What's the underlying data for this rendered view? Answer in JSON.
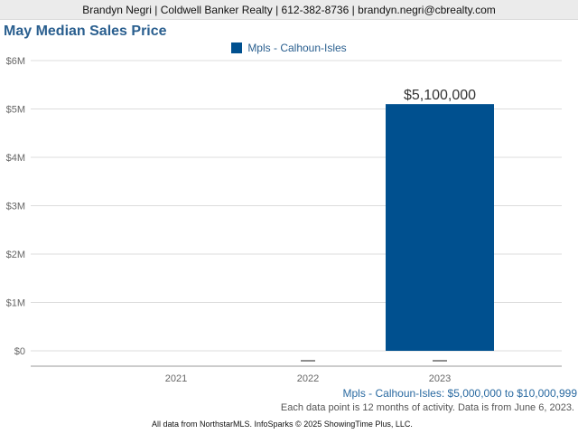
{
  "header": {
    "text": "Brandyn Negri | Coldwell Banker Realty | 612-382-8736 | brandyn.negri@cbrealty.com"
  },
  "notes": {
    "range": "Mpls - Calhoun-Isles: $5,000,000 to $10,000,999",
    "activity": "Each data point is 12 months of activity. Data is from June 6, 2023."
  },
  "footer": {
    "text": "All data from NorthstarMLS. InfoSparks © 2025 ShowingTime Plus, LLC."
  },
  "colors": {
    "bar": "#00508f",
    "title": "#2a5f8f",
    "grid": "#dcdcdc",
    "axis": "#999999"
  },
  "chart_data": {
    "type": "bar",
    "title": "May Median Sales Price",
    "categories": [
      "2021",
      "2022",
      "2023"
    ],
    "series": [
      {
        "name": "Mpls - Calhoun-Isles",
        "values": [
          null,
          null,
          5100000
        ],
        "data_labels": [
          "",
          "",
          "$5,100,000"
        ]
      }
    ],
    "no_data_markers": [
      "",
      "—",
      "—"
    ],
    "ylim": [
      0,
      6000000
    ],
    "yticks": [
      0,
      1000000,
      2000000,
      3000000,
      4000000,
      5000000,
      6000000
    ],
    "ytick_labels": [
      "$0",
      "$1M",
      "$2M",
      "$3M",
      "$4M",
      "$5M",
      "$6M"
    ],
    "grid": true,
    "legend": "top-center",
    "xlabel": "",
    "ylabel": ""
  }
}
